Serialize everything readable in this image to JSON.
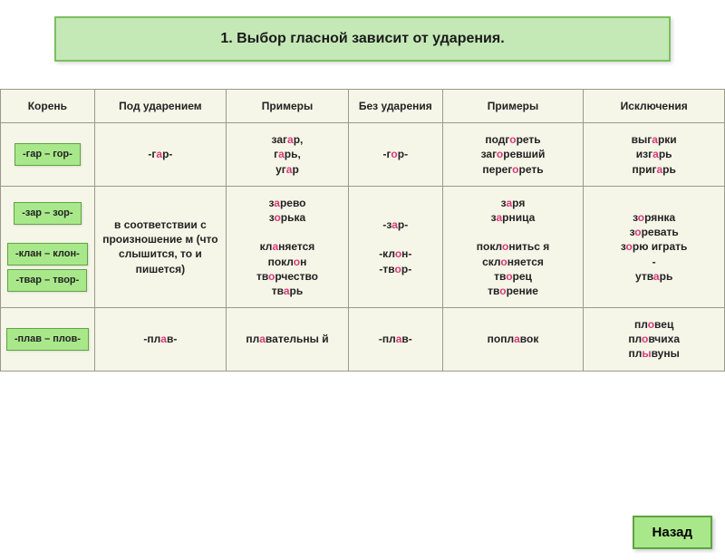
{
  "title": "1. Выбор гласной зависит от ударения.",
  "headers": {
    "root": "Корень",
    "stressed": "Под ударением",
    "examples1": "Примеры",
    "unstressed": "Без ударения",
    "examples2": "Примеры",
    "exceptions": "Исключения"
  },
  "rows": {
    "gar": {
      "root": "-гар – гор-",
      "stressed_pre": "-г",
      "stressed_hl": "а",
      "stressed_post": "р-",
      "ex1_1a": "заг",
      "ex1_1b": "а",
      "ex1_1c": "р,",
      "ex1_2a": "г",
      "ex1_2b": "а",
      "ex1_2c": "рь,",
      "ex1_3a": "уг",
      "ex1_3b": "а",
      "ex1_3c": "р",
      "un_pre": "-г",
      "un_hl": "о",
      "un_post": "р-",
      "ex2_1a": "подг",
      "ex2_1b": "о",
      "ex2_1c": "реть",
      "ex2_2a": "заг",
      "ex2_2b": "о",
      "ex2_2c": "ревший",
      "ex2_3a": "перег",
      "ex2_3b": "о",
      "ex2_3c": "реть",
      "exc_1a": "выг",
      "exc_1b": "а",
      "exc_1c": "рки",
      "exc_2a": "изг",
      "exc_2b": "а",
      "exc_2c": "рь",
      "exc_3a": "приг",
      "exc_3b": "а",
      "exc_3c": "рь"
    },
    "group": {
      "root_zar": "-зар – зор-",
      "root_klan": "-клан – клон-",
      "root_tvar": "-твар – твор-",
      "stressed": "в соответствии с произношение м (что слышится, то и пишется)",
      "ex1_1a": "з",
      "ex1_1b": "а",
      "ex1_1c": "рево",
      "ex1_2a": "з",
      "ex1_2b": "о",
      "ex1_2c": "рька",
      "ex1_3a": "кл",
      "ex1_3b": "а",
      "ex1_3c": "няется",
      "ex1_4a": "покл",
      "ex1_4b": "о",
      "ex1_4c": "н",
      "ex1_5a": "тв",
      "ex1_5b": "о",
      "ex1_5c": "рчество",
      "ex1_6a": "тв",
      "ex1_6b": "а",
      "ex1_6c": "рь",
      "un1_a": "-з",
      "un1_b": "а",
      "un1_c": "р-",
      "un2_a": "-кл",
      "un2_b": "о",
      "un2_c": "н-",
      "un3_a": "-тв",
      "un3_b": "о",
      "un3_c": "р-",
      "ex2_1a": "з",
      "ex2_1b": "а",
      "ex2_1c": "ря",
      "ex2_2a": "з",
      "ex2_2b": "а",
      "ex2_2c": "рница",
      "ex2_3a": "покл",
      "ex2_3b": "о",
      "ex2_3c": "нитьс я",
      "ex2_4a": "скл",
      "ex2_4b": "о",
      "ex2_4c": "няется",
      "ex2_5a": "тв",
      "ex2_5b": "о",
      "ex2_5c": "рец",
      "ex2_6a": "тв",
      "ex2_6b": "о",
      "ex2_6c": "рение",
      "exc_1a": "з",
      "exc_1b": "о",
      "exc_1c": "рянка",
      "exc_2a": "з",
      "exc_2b": "о",
      "exc_2c": "ревать",
      "exc_3a": "з",
      "exc_3b": "о",
      "exc_3c": "рю играть",
      "exc_dash": "-",
      "exc_4a": "утв",
      "exc_4b": "а",
      "exc_4c": "рь"
    },
    "plav": {
      "root": "-плав – плов-",
      "st_a": "-пл",
      "st_b": "а",
      "st_c": "в-",
      "ex1_1a": "пл",
      "ex1_1b": "а",
      "ex1_1c": "вательны й",
      "un_a": "-пл",
      "un_b": "а",
      "un_c": "в-",
      "ex2_1a": "попл",
      "ex2_1b": "а",
      "ex2_1c": "вок",
      "exc_1a": "пл",
      "exc_1b": "о",
      "exc_1c": "вец",
      "exc_2a": "пл",
      "exc_2b": "о",
      "exc_2c": "вчиха",
      "exc_3a": "пл",
      "exc_3b": "ы",
      "exc_3c": "вуны"
    }
  },
  "back": "Назад",
  "colors": {
    "badge_bg": "#a8e88a",
    "badge_border": "#5fa344",
    "title_bg": "#c5e8b7",
    "highlight": "#d83a78",
    "cell_bg": "#f5f5e8"
  }
}
